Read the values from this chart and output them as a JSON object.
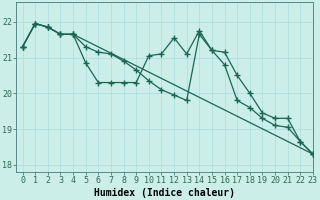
{
  "title": "",
  "xlabel": "Humidex (Indice chaleur)",
  "background_color": "#cceee8",
  "grid_color": "#aadddd",
  "line_color": "#1a6655",
  "xlim": [
    -0.5,
    23
  ],
  "ylim": [
    17.8,
    22.55
  ],
  "yticks": [
    18,
    19,
    20,
    21,
    22
  ],
  "xticks": [
    0,
    1,
    2,
    3,
    4,
    5,
    6,
    7,
    8,
    9,
    10,
    11,
    12,
    13,
    14,
    15,
    16,
    17,
    18,
    19,
    20,
    21,
    22,
    23
  ],
  "line1_x": [
    0,
    1,
    2,
    3,
    4,
    5,
    6,
    7,
    8,
    9,
    10,
    11,
    12,
    13,
    14,
    15,
    16,
    17,
    18,
    19,
    20,
    21,
    22,
    23
  ],
  "line1_y": [
    21.3,
    21.95,
    21.85,
    21.65,
    21.65,
    20.85,
    20.3,
    20.3,
    20.3,
    20.3,
    21.05,
    21.1,
    21.55,
    21.1,
    21.75,
    21.2,
    21.15,
    20.5,
    20.0,
    19.45,
    19.3,
    19.3,
    18.65,
    18.3
  ],
  "line2_x": [
    0,
    1,
    2,
    3,
    4,
    5,
    6,
    7,
    8,
    9,
    10,
    11,
    12,
    13,
    14,
    15,
    16,
    17,
    18,
    19,
    20,
    21,
    22,
    23
  ],
  "line2_y": [
    21.3,
    21.95,
    21.85,
    21.65,
    21.65,
    21.3,
    21.15,
    21.1,
    20.9,
    20.65,
    20.35,
    20.1,
    19.95,
    19.8,
    21.65,
    21.2,
    20.8,
    19.8,
    19.6,
    19.3,
    19.1,
    19.05,
    18.65,
    18.3
  ],
  "line3_x": [
    0,
    1,
    2,
    3,
    4,
    23
  ],
  "line3_y": [
    21.3,
    21.95,
    21.85,
    21.65,
    21.65,
    18.3
  ],
  "marker": "+",
  "marker_size": 4,
  "marker_edge_width": 1.0,
  "line_width": 0.9,
  "xlabel_fontsize": 7,
  "tick_fontsize": 6,
  "spine_color": "#558888"
}
